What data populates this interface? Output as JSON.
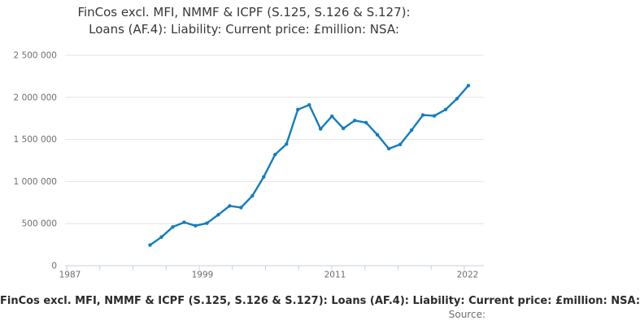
{
  "title": {
    "line1": "FinCos excl. MFI, NMMF & ICPF (S.125, S.126 & S.127):",
    "line2": "Loans (AF.4): Liability: Current price: £million: NSA:"
  },
  "footer": {
    "series_title": "FinCos excl. MFI, NMMF & ICPF (S.125, S.126 & S.127): Loans (AF.4): Liability: Current price: £million: NSA:",
    "source_label": "Source:"
  },
  "chart_data": {
    "type": "line",
    "title": "FinCos excl. MFI, NMMF & ICPF (S.125, S.126 & S.127): Loans (AF.4): Liability: Current price: £million: NSA:",
    "xlabel": "",
    "ylabel": "",
    "unit": "£million",
    "ylim": [
      0,
      2500000
    ],
    "xlim_years": [
      1987,
      2023
    ],
    "grid": "horizontal",
    "legend": "none",
    "marker": "dot",
    "line_color": "#127DBE",
    "grid_color": "#e4e4e4",
    "axis_color": "#c3d2df",
    "tick_label_color": "#6e6e6e",
    "x": [
      1994,
      1995,
      1996,
      1997,
      1998,
      1999,
      2000,
      2001,
      2002,
      2003,
      2004,
      2005,
      2006,
      2007,
      2008,
      2009,
      2010,
      2011,
      2012,
      2013,
      2014,
      2015,
      2016,
      2017,
      2018,
      2019,
      2020,
      2021,
      2022
    ],
    "values": [
      245000,
      340000,
      460000,
      515000,
      475000,
      505000,
      605000,
      710000,
      690000,
      830000,
      1055000,
      1320000,
      1445000,
      1855000,
      1910000,
      1625000,
      1775000,
      1630000,
      1725000,
      1700000,
      1555000,
      1390000,
      1440000,
      1610000,
      1790000,
      1780000,
      1855000,
      1985000,
      2140000
    ],
    "y_ticks": [
      {
        "value": 0,
        "label": "0"
      },
      {
        "value": 500000,
        "label": "500 000"
      },
      {
        "value": 1000000,
        "label": "1 000 000"
      },
      {
        "value": 1500000,
        "label": "1 500 000"
      },
      {
        "value": 2000000,
        "label": "2 000 000"
      },
      {
        "value": 2500000,
        "label": "2 500 000"
      }
    ],
    "x_tick_labels": [
      "1987",
      "",
      "",
      "",
      "1999",
      "",
      "",
      "",
      "2011",
      "",
      "",
      "",
      "2022"
    ]
  }
}
